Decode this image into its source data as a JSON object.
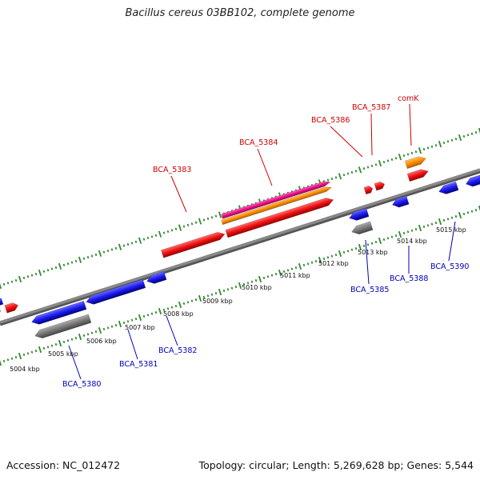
{
  "title": "Bacillus cereus 03BB102, complete genome",
  "footer": {
    "accession": "Accession: NC_012472",
    "summary": "Topology: circular; Length: 5,269,628 bp; Genes: 5,544"
  },
  "colors": {
    "backbone": "#888888",
    "tick": "#2e8b2e",
    "forward_cds": "#ee1111",
    "reverse_cds": "#1a1aee",
    "pseudo": "#777777",
    "rna": "#ff8c00",
    "pink": "#ee1188",
    "forward_label": "#cc0000",
    "reverse_label": "#0000bb"
  },
  "scale_labels": [
    "5004 kbp",
    "5005 kbp",
    "5006 kbp",
    "5007 kbp",
    "5008 kbp",
    "5009 kbp",
    "5010 kbp",
    "5011 kbp",
    "5012 kbp",
    "5013 kbp",
    "5014 kbp",
    "5015 kbp"
  ],
  "gene_labels": {
    "forward": [
      "BCA_5383",
      "BCA_5384",
      "BCA_5386",
      "BCA_5387",
      "comK"
    ],
    "reverse": [
      "BCA_5380",
      "BCA_5381",
      "BCA_5382",
      "BCA_5385",
      "BCA_5388",
      "BCA_5390"
    ]
  }
}
